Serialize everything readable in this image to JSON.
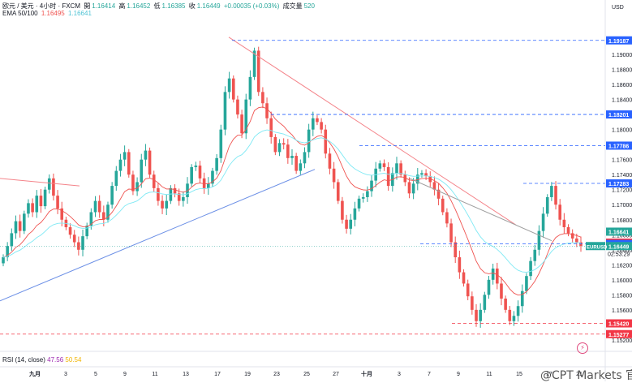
{
  "legend": {
    "symbol": "欧元 / 美元 · 4小时 · FXCM",
    "open_label": "開",
    "open": "1.16414",
    "high_label": "高",
    "high": "1.16452",
    "low_label": "低",
    "low": "1.16385",
    "close_label": "收",
    "close": "1.16449",
    "change": "+0.00035 (+0.03%)",
    "volume_label": "成交量",
    "volume": "520",
    "ema_label": "EMA 50/100",
    "ema50": "1.16495",
    "ema100": "1.16641"
  },
  "rsi_legend": {
    "label": "RSI (14, close)",
    "v1": "47.56",
    "v2": "50.54"
  },
  "watermark": "@CPT Markets 官方",
  "icons": {
    "alert": "lightning-bolt-icon"
  },
  "colors": {
    "up": "#26a69a",
    "down": "#ef5350",
    "ema50": "#ef5350",
    "ema100": "#7fe9f4",
    "trendline_down": "#f4848a",
    "trendline_up": "#6b8fe6",
    "level_blue": "#2962ff",
    "level_red": "#f23645",
    "gray_line": "#9e9e9e",
    "eurusd_tag": "#26a69a"
  },
  "chart_data": {
    "type": "candlestick",
    "title": "欧元 / 美元 · 4小时 · FXCM",
    "currency": "USD",
    "ylim": [
      1.1508,
      1.1953
    ],
    "yticks": [
      "1.19000",
      "1.18800",
      "1.18600",
      "1.18400",
      "1.18200",
      "1.18000",
      "1.17800",
      "1.17600",
      "1.17400",
      "1.17200",
      "1.17000",
      "1.16800",
      "1.16600",
      "1.16400",
      "1.16200",
      "1.16000",
      "1.15800",
      "1.15600",
      "1.15400",
      "1.15200"
    ],
    "xticks": [
      "九月",
      "3",
      "5",
      "9",
      "11",
      "13",
      "17",
      "19",
      "23",
      "25",
      "27",
      "十月",
      "3",
      "7",
      "9",
      "11",
      "15",
      "17",
      "21"
    ],
    "closes": [
      1.163,
      1.1645,
      1.1662,
      1.1678,
      1.1665,
      1.1688,
      1.1702,
      1.169,
      1.1712,
      1.1698,
      1.172,
      1.1735,
      1.1712,
      1.1695,
      1.168,
      1.167,
      1.166,
      1.165,
      1.164,
      1.1658,
      1.1672,
      1.169,
      1.1705,
      1.169,
      1.168,
      1.17,
      1.1725,
      1.1745,
      1.176,
      1.177,
      1.174,
      1.1718,
      1.173,
      1.176,
      1.1772,
      1.174,
      1.1722,
      1.1705,
      1.1695,
      1.1705,
      1.1722,
      1.1715,
      1.1705,
      1.171,
      1.1728,
      1.175,
      1.1752,
      1.1735,
      1.1722,
      1.1728,
      1.1745,
      1.1762,
      1.18,
      1.185,
      1.1868,
      1.184,
      1.182,
      1.1795,
      1.184,
      1.187,
      1.1905,
      1.185,
      1.1835,
      1.1815,
      1.179,
      1.177,
      1.1782,
      1.178,
      1.1762,
      1.1765,
      1.1745,
      1.1755,
      1.177,
      1.18,
      1.1815,
      1.181,
      1.18,
      1.1768,
      1.1748,
      1.173,
      1.1705,
      1.168,
      1.1668,
      1.168,
      1.1695,
      1.1708,
      1.171,
      1.1718,
      1.1732,
      1.1748,
      1.1755,
      1.175,
      1.1725,
      1.1742,
      1.1755,
      1.174,
      1.173,
      1.1715,
      1.1728,
      1.174,
      1.1742,
      1.1738,
      1.173,
      1.172,
      1.1708,
      1.169,
      1.1675,
      1.165,
      1.163,
      1.161,
      1.1595,
      1.1578,
      1.156,
      1.1545,
      1.156,
      1.158,
      1.16,
      1.1615,
      1.1595,
      1.1575,
      1.156,
      1.1545,
      1.1552,
      1.1565,
      1.1585,
      1.1605,
      1.1625,
      1.164,
      1.1665,
      1.1688,
      1.171,
      1.1725,
      1.17,
      1.168,
      1.167,
      1.1662,
      1.1655,
      1.165,
      1.1645
    ],
    "ema50_last": 1.16495,
    "ema100_last": 1.16641,
    "price_labels": [
      {
        "value": 1.19187,
        "text": "1.19187",
        "color": "#2962ff"
      },
      {
        "value": 1.18201,
        "text": "1.18201",
        "color": "#2962ff"
      },
      {
        "value": 1.17786,
        "text": "1.17786",
        "color": "#2962ff"
      },
      {
        "value": 1.17283,
        "text": "1.17283",
        "color": "#2962ff"
      },
      {
        "value": 1.16641,
        "text": "1.16641",
        "color": "#26a69a"
      },
      {
        "value": 1.16495,
        "text": "1.16495",
        "color": "#f23645"
      },
      {
        "value": 1.16477,
        "text": "1.16477",
        "color": "#2962ff"
      },
      {
        "value": 1.16449,
        "text": "1.16449",
        "color": "#26a69a"
      },
      {
        "value": 1.1542,
        "text": "1.15420",
        "color": "#f23645"
      },
      {
        "value": 1.15277,
        "text": "1.15277",
        "color": "#f23645"
      }
    ],
    "eurusd_tag": {
      "text": "EURUSD",
      "countdown": "02:53:29"
    },
    "rsi": {
      "period": 14,
      "value1": 47.56,
      "value2": 50.54
    }
  }
}
